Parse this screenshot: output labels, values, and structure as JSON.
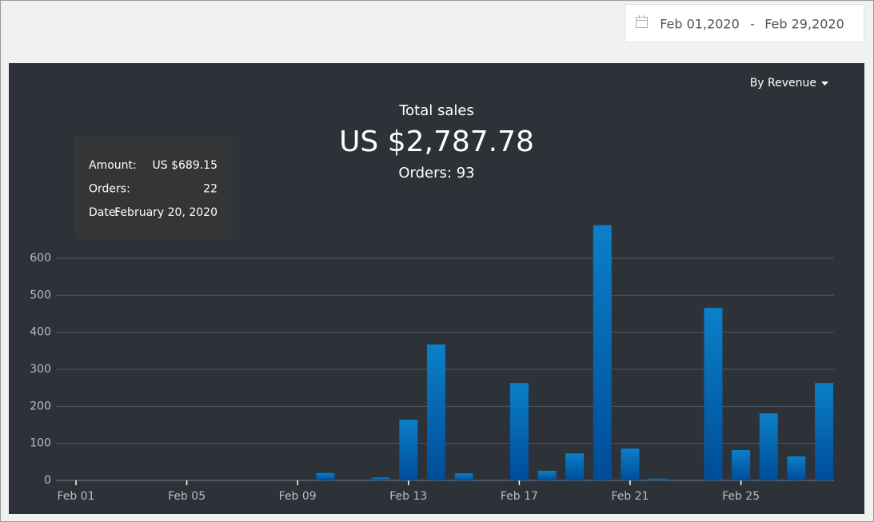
{
  "date_range": {
    "start": "Feb 01,2020",
    "separator": "-",
    "end": "Feb 29,2020"
  },
  "dropdown": "By Revenue",
  "summary": {
    "title": "Total sales",
    "total": "US $2,787.78",
    "orders": "Orders: 93"
  },
  "tooltip": {
    "rows": [
      [
        "Amount:",
        "US $689.15"
      ],
      [
        "Orders:",
        "22"
      ],
      [
        "Date:",
        "February 20, 2020"
      ]
    ]
  },
  "chart_data": {
    "type": "bar",
    "categories": [
      "Feb 01",
      null,
      null,
      null,
      "Feb 05",
      null,
      null,
      null,
      "Feb 09",
      null,
      null,
      null,
      "Feb 13",
      null,
      null,
      null,
      "Feb 17",
      null,
      null,
      null,
      "Feb 21",
      null,
      null,
      null,
      "Feb 25",
      null,
      null,
      null
    ],
    "values": [
      0,
      0,
      0,
      0,
      0,
      0,
      0,
      0,
      0,
      20,
      0,
      8,
      164,
      367,
      19,
      0,
      263,
      26,
      73,
      689.15,
      86,
      5,
      0,
      466,
      82,
      181,
      65,
      263
    ],
    "color": "#0a80c8",
    "ylim": [
      0,
      700
    ],
    "yticks": [
      0,
      100,
      200,
      300,
      400,
      500,
      600
    ],
    "grid": true
  }
}
